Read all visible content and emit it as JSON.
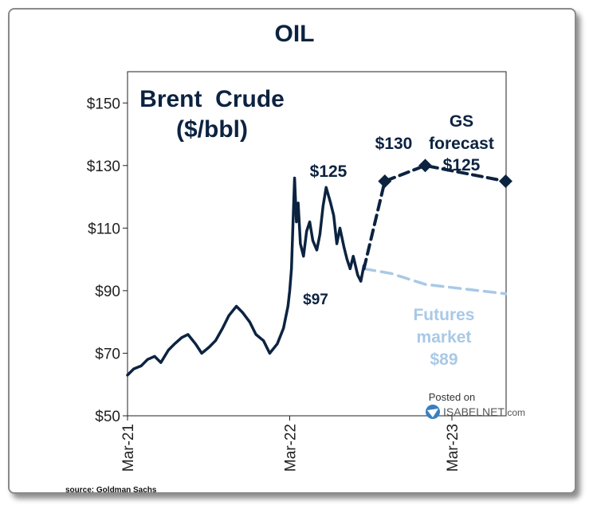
{
  "page_title": "OIL",
  "source": "source: Goldman Sachs",
  "colors": {
    "brent": "#0c2340",
    "forecast": "#0c2340",
    "futures": "#a9c9e6",
    "axis": "#222222",
    "text_dark": "#0c2340"
  },
  "chart_data": {
    "type": "line",
    "title": "Brent  Crude",
    "subtitle": "($/bbl)",
    "xlabel": "",
    "ylabel": "",
    "xlim": [
      "2021-03-01",
      "2023-07-01"
    ],
    "ylim": [
      50,
      160
    ],
    "yticks": [
      50,
      70,
      90,
      110,
      130,
      150
    ],
    "ytick_labels": [
      "$50",
      "$70",
      "$90",
      "$110",
      "$130",
      "$150"
    ],
    "xticks": [
      "2021-03-01",
      "2022-03-01",
      "2023-03-01"
    ],
    "xtick_labels": [
      "Mar-21",
      "Mar-22",
      "Mar-23"
    ],
    "grid": false,
    "series": [
      {
        "key": "brent",
        "style": "solid",
        "x": [
          "2021-03-01",
          "2021-03-15",
          "2021-04-01",
          "2021-04-15",
          "2021-05-01",
          "2021-05-15",
          "2021-06-01",
          "2021-06-15",
          "2021-07-01",
          "2021-07-15",
          "2021-08-01",
          "2021-08-15",
          "2021-09-01",
          "2021-09-15",
          "2021-10-01",
          "2021-10-15",
          "2021-11-01",
          "2021-11-15",
          "2021-12-01",
          "2021-12-15",
          "2022-01-01",
          "2022-01-15",
          "2022-02-01",
          "2022-02-15",
          "2022-02-25",
          "2022-03-01",
          "2022-03-05",
          "2022-03-08",
          "2022-03-12",
          "2022-03-16",
          "2022-03-20",
          "2022-03-25",
          "2022-04-01",
          "2022-04-08",
          "2022-04-15",
          "2022-04-22",
          "2022-05-01",
          "2022-05-08",
          "2022-05-15",
          "2022-05-22",
          "2022-06-01",
          "2022-06-08",
          "2022-06-15",
          "2022-06-22",
          "2022-07-01",
          "2022-07-08",
          "2022-07-15",
          "2022-07-22",
          "2022-08-01",
          "2022-08-08",
          "2022-08-15"
        ],
        "y": [
          63,
          65,
          66,
          68,
          69,
          67,
          71,
          73,
          75,
          76,
          73,
          70,
          72,
          74,
          78,
          82,
          85,
          83,
          80,
          76,
          74,
          70,
          73,
          78,
          85,
          90,
          97,
          110,
          126,
          112,
          118,
          105,
          101,
          109,
          112,
          106,
          103,
          108,
          117,
          123,
          118,
          114,
          105,
          110,
          104,
          100,
          97,
          101,
          95,
          93,
          98
        ]
      },
      {
        "key": "forecast",
        "name": "GS forecast",
        "style": "dashed",
        "x": [
          "2022-08-15",
          "2022-10-01",
          "2022-12-31",
          "2023-06-30"
        ],
        "y": [
          97,
          125,
          130,
          125
        ],
        "point_labels": [
          "$97",
          "$125",
          "$130",
          "$125"
        ]
      },
      {
        "key": "futures",
        "name": "Futures market",
        "style": "dashed",
        "x": [
          "2022-08-15",
          "2022-10-15",
          "2023-01-01",
          "2023-06-30"
        ],
        "y": [
          97,
          95.5,
          92,
          89
        ],
        "end_label": "$89"
      }
    ],
    "annotations": {
      "start_label": "$97",
      "forecast_mid_label": "$125",
      "forecast_peak_label": "$130",
      "forecast_text_1": "GS",
      "forecast_text_2": "forecast",
      "forecast_end_label": "$125",
      "futures_text_1": "Futures",
      "futures_text_2": "market",
      "futures_end_label": "$89"
    },
    "watermark": {
      "line1": "Posted on",
      "line2": "ISABELNET",
      "line2_suffix": ".com"
    }
  }
}
